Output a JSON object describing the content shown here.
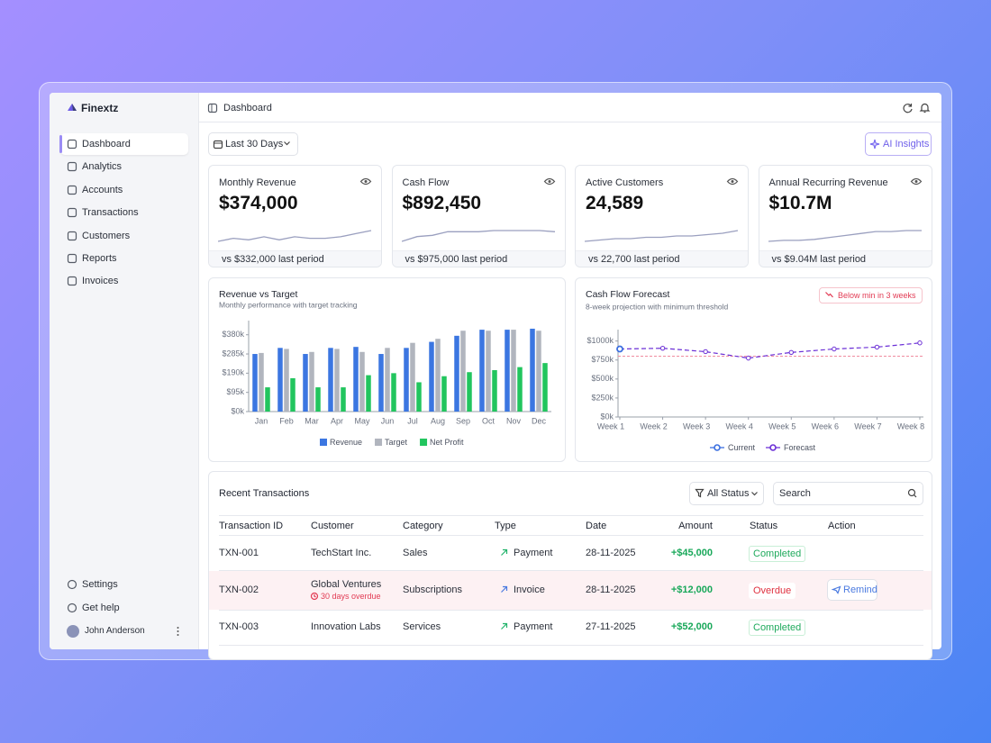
{
  "app": {
    "name": "Finextz"
  },
  "sidebar": {
    "nav": [
      "Dashboard",
      "Analytics",
      "Accounts",
      "Transactions",
      "Customers",
      "Reports",
      "Invoices"
    ],
    "footer": [
      "Settings",
      "Get help"
    ],
    "user": "John Anderson"
  },
  "header": {
    "title": "Dashboard"
  },
  "toolbar": {
    "date_range": "Last 30 Days",
    "ai_button": "AI Insights"
  },
  "kpis": [
    {
      "label": "Monthly Revenue",
      "value": "$374,000",
      "comparison": "vs $332,000 last period",
      "sparkline": [
        3,
        5,
        4,
        6,
        4,
        6,
        5,
        5,
        6,
        8,
        10
      ]
    },
    {
      "label": "Cash Flow",
      "value": "$892,450",
      "comparison": "vs $975,000 last period",
      "sparkline": [
        0,
        4,
        5,
        8,
        8,
        8,
        9,
        9,
        9,
        9,
        8
      ]
    },
    {
      "label": "Active Customers",
      "value": "24,589",
      "comparison": "vs 22,700 last period",
      "sparkline": [
        2,
        3,
        4,
        4,
        5,
        5,
        6,
        6,
        7,
        8,
        10
      ]
    },
    {
      "label": "Annual Recurring Revenue",
      "value": "$10.7M",
      "comparison": "vs $9.04M last period",
      "sparkline": [
        0,
        1,
        1,
        2,
        4,
        6,
        8,
        10,
        10,
        11,
        11
      ]
    }
  ],
  "chart_data": [
    {
      "type": "bar",
      "title": "Revenue vs Target",
      "subtitle": "Monthly performance with target tracking",
      "categories": [
        "Jan",
        "Feb",
        "Mar",
        "Apr",
        "May",
        "Jun",
        "Jul",
        "Aug",
        "Sep",
        "Oct",
        "Nov",
        "Dec"
      ],
      "series": [
        {
          "name": "Revenue",
          "color": "#3b76e1",
          "values": [
            285,
            315,
            285,
            315,
            320,
            285,
            315,
            345,
            375,
            405,
            405,
            410
          ]
        },
        {
          "name": "Target",
          "color": "#b1b5be",
          "values": [
            290,
            310,
            295,
            310,
            295,
            315,
            340,
            360,
            400,
            400,
            405,
            400
          ]
        },
        {
          "name": "Net Profit",
          "color": "#22c55e",
          "values": [
            120,
            165,
            120,
            120,
            180,
            190,
            145,
            175,
            195,
            205,
            220,
            240
          ]
        }
      ],
      "ylim": [
        0,
        450
      ],
      "yticks": [
        {
          "value": 0,
          "label": "$0k"
        },
        {
          "value": 95,
          "label": "$95k"
        },
        {
          "value": 190,
          "label": "$190k"
        },
        {
          "value": 285,
          "label": "$285k"
        },
        {
          "value": 380,
          "label": "$380k"
        }
      ],
      "grid": false
    },
    {
      "type": "line",
      "title": "Cash Flow Forecast",
      "subtitle": "8-week projection with minimum threshold",
      "annotation": "Below min in 3 weeks",
      "categories": [
        "Week 1",
        "Week 2",
        "Week 3",
        "Week 4",
        "Week 5",
        "Week 6",
        "Week 7",
        "Week 8"
      ],
      "series": [
        {
          "name": "Current",
          "color": "#3b6fe0",
          "line_style": "solid",
          "values": [
            895,
            null,
            null,
            null,
            null,
            null,
            null,
            null
          ]
        },
        {
          "name": "Forecast",
          "color": "#6b2fd6",
          "line_style": "dashed",
          "values": [
            895,
            905,
            860,
            775,
            850,
            895,
            920,
            975
          ]
        }
      ],
      "threshold": 800,
      "threshold_color": "#f08ca0",
      "ylim": [
        0,
        1150
      ],
      "yticks": [
        {
          "value": 0,
          "label": "$0k"
        },
        {
          "value": 250,
          "label": "$250k"
        },
        {
          "value": 500,
          "label": "$500k"
        },
        {
          "value": 750,
          "label": "$750k"
        },
        {
          "value": 1000,
          "label": "$1000k"
        }
      ],
      "grid": false
    }
  ],
  "transactions": {
    "title": "Recent Transactions",
    "filter": "All Status",
    "search_placeholder": "Search",
    "columns": [
      "Transaction ID",
      "Customer",
      "Category",
      "Type",
      "Date",
      "Amount",
      "Status",
      "Action"
    ],
    "rows": [
      {
        "id": "TXN-001",
        "customer": "TechStart Inc.",
        "category": "Sales",
        "type": "Payment",
        "date": "28-11-2025",
        "amount": "+$45,000",
        "status": "Completed"
      },
      {
        "id": "TXN-002",
        "customer": "Global Ventures",
        "note": "30 days overdue",
        "category": "Subscriptions",
        "type": "Invoice",
        "date": "28-11-2025",
        "amount": "+$12,000",
        "status": "Overdue",
        "action": "Remind"
      },
      {
        "id": "TXN-003",
        "customer": "Innovation Labs",
        "category": "Services",
        "type": "Payment",
        "date": "27-11-2025",
        "amount": "+$52,000",
        "status": "Completed"
      }
    ]
  }
}
